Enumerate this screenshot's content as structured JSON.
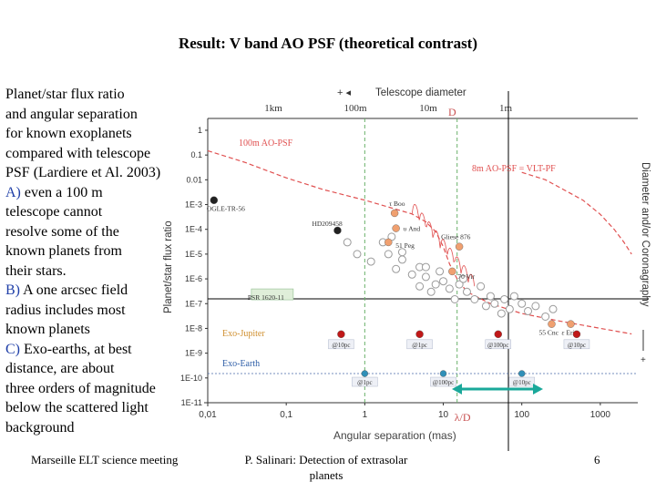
{
  "slide": {
    "title": "Result: V band AO PSF (theoretical contrast)",
    "lines": [
      {
        "text": "Planet/star flux ratio",
        "blue": false
      },
      {
        "text": "and angular separation",
        "blue": false
      },
      {
        "text": "for known exoplanets",
        "blue": false
      },
      {
        "text": "compared with telescope",
        "blue": false
      },
      {
        "text": "PSF (Lardiere et Al. 2003)",
        "blue": false
      },
      {
        "text": "A) even a 100 m",
        "blue": true
      },
      {
        "text": "telescope cannot",
        "blue": false
      },
      {
        "text": "resolve some of the",
        "blue": false
      },
      {
        "text": "known planets from",
        "blue": false
      },
      {
        "text": "their stars.",
        "blue": false
      },
      {
        "text": "B) A one arcsec field",
        "blue": true
      },
      {
        "text": "radius includes most",
        "blue": false
      },
      {
        "text": "known planets",
        "blue": false
      },
      {
        "text": "C) Exo-earths, at best",
        "blue": true
      },
      {
        "text": "distance, are about",
        "blue": false
      },
      {
        "text": "three orders of magnitude",
        "blue": false
      },
      {
        "text": "below the scattered light",
        "blue": false
      },
      {
        "text": "background",
        "blue": false
      }
    ],
    "footer": {
      "left": "Marseille ELT science meeting",
      "center_line1": "P. Salinari: Detection of extrasolar",
      "center_line2": "planets",
      "page": "6"
    }
  },
  "chart_data": {
    "type": "scatter",
    "xlabel": "Angular separation (mas)",
    "ylabel": "Planet/star flux ratio",
    "right_label": "Diameter and/or Coronagraphy",
    "top_axis_title": "Telescope diameter",
    "top_axis_arrows": "+ ◂",
    "right_axis_arrow": "+",
    "x_scale": "log",
    "y_scale": "log",
    "xlim": [
      0.01,
      3000
    ],
    "ylim": [
      1e-11,
      3
    ],
    "x_ticks": [
      "0,01",
      "0,1",
      "1",
      "10",
      "100",
      "1000"
    ],
    "y_ticks": [
      "1",
      "0.1",
      "0.01",
      "1E-3",
      "1E-4",
      "1E-5",
      "1E-6",
      "1E-7",
      "1E-8",
      "1E-9",
      "1E-10",
      "1E-11"
    ],
    "top_ticks": [
      "1km",
      "100m",
      "10m",
      "1m"
    ],
    "annotations": {
      "D": "D",
      "lambda_over_D": "λ/D",
      "psf_100m": "100m AO-PSF",
      "psf_8m": "8m AO-PSF = VLT-PF",
      "exo_jupiter": "Exo-Jupiter",
      "exo_earth": "Exo-Earth",
      "planet_labels": [
        "OGLE-TR-56",
        "HD209458",
        "τ Boo",
        "υ And",
        "51 Peg",
        "Gliese 876",
        "70 Vir",
        "PSR 1620-11",
        "55 Cnc",
        "ε Eri"
      ],
      "jupiter_distances": [
        "@10pc",
        "@1pc",
        "@100pc",
        "@10pc"
      ],
      "earth_distances": [
        "@1pc",
        "@100pc",
        "@10pc"
      ]
    },
    "series": [
      {
        "name": "100m AO-PSF",
        "color": "#e05050",
        "points": [
          [
            0.01,
            0.15
          ],
          [
            0.03,
            0.05
          ],
          [
            0.1,
            0.012
          ],
          [
            0.3,
            0.004
          ],
          [
            1,
            0.0015
          ],
          [
            2,
            0.0008
          ],
          [
            4,
            0.00042
          ],
          [
            6,
            0.0002
          ],
          [
            8,
            8e-05
          ],
          [
            10,
            2e-05
          ],
          [
            12,
            4e-06
          ],
          [
            15,
            1e-06
          ],
          [
            20,
            3e-07
          ],
          [
            40,
            1e-07
          ],
          [
            100,
            4e-08
          ],
          [
            300,
            2e-08
          ],
          [
            1000,
            1e-08
          ],
          [
            2500,
            6e-09
          ]
        ]
      },
      {
        "name": "8m AO-PSF = VLT-PF",
        "color": "#e05050",
        "points": [
          [
            100,
            0.02
          ],
          [
            200,
            0.01
          ],
          [
            300,
            0.005
          ],
          [
            600,
            0.0015
          ],
          [
            1000,
            0.0004
          ],
          [
            1500,
            0.0001
          ],
          [
            2000,
            3e-05
          ],
          [
            2500,
            1e-05
          ]
        ]
      }
    ],
    "known_planets_grey": [
      [
        0.6,
        3e-05
      ],
      [
        0.8,
        1e-05
      ],
      [
        1.2,
        5e-06
      ],
      [
        1.7,
        3e-05
      ],
      [
        2,
        1e-05
      ],
      [
        2.5,
        2.5e-06
      ],
      [
        3,
        6e-06
      ],
      [
        4,
        1.5e-06
      ],
      [
        5,
        3e-06
      ],
      [
        5,
        5e-07
      ],
      [
        6,
        1.2e-06
      ],
      [
        7,
        3e-07
      ],
      [
        8,
        6e-07
      ],
      [
        9,
        2e-06
      ],
      [
        10,
        8e-07
      ],
      [
        12,
        4e-07
      ],
      [
        14,
        1.5e-07
      ],
      [
        16,
        6e-07
      ],
      [
        18,
        1e-06
      ],
      [
        20,
        3e-07
      ],
      [
        25,
        1.5e-07
      ],
      [
        30,
        5e-07
      ],
      [
        35,
        8e-08
      ],
      [
        40,
        2e-07
      ],
      [
        45,
        1e-07
      ],
      [
        55,
        4e-08
      ],
      [
        60,
        1.5e-07
      ],
      [
        70,
        6e-08
      ],
      [
        80,
        2e-07
      ],
      [
        100,
        1e-07
      ],
      [
        120,
        5e-08
      ],
      [
        150,
        8e-08
      ],
      [
        200,
        3e-08
      ],
      [
        250,
        6e-08
      ],
      [
        3,
        1.2e-05
      ],
      [
        2.2,
        5e-05
      ],
      [
        6,
        3e-06
      ]
    ],
    "labeled_planets": [
      {
        "name": "OGLE-TR-56",
        "x": 0.012,
        "y": 0.0015,
        "color": "#222222"
      },
      {
        "name": "HD209458",
        "x": 0.45,
        "y": 9e-05,
        "color": "#222222"
      },
      {
        "name": "τ Boo",
        "x": 2.4,
        "y": 0.00045,
        "color": "#f0a070"
      },
      {
        "name": "υ And",
        "x": 2.5,
        "y": 0.00011,
        "color": "#f0a070"
      },
      {
        "name": "51 Peg",
        "x": 2.0,
        "y": 3e-05,
        "color": "#f0a070"
      },
      {
        "name": "Gliese 876",
        "x": 16,
        "y": 2e-05,
        "color": "#f0a070"
      },
      {
        "name": "70 Vir",
        "x": 13,
        "y": 2e-06,
        "color": "#f0a070"
      },
      {
        "name": "PSR 1620-11",
        "x": 0.04,
        "y": 2e-07,
        "color": "#3a9a3a"
      },
      {
        "name": "55 Cnc",
        "x": 240,
        "y": 1.5e-08,
        "color": "#f0a070"
      },
      {
        "name": "ε Eri",
        "x": 420,
        "y": 1.5e-08,
        "color": "#f0a070"
      }
    ],
    "exo_jupiter_points": [
      {
        "x": 0.5,
        "y": 2.5e-09,
        "label": "@10pc"
      },
      {
        "x": 5,
        "y": 2.5e-09,
        "label": "@1pc"
      },
      {
        "x": 50,
        "y": 2.5e-09,
        "label": "@100pc"
      },
      {
        "x": 500,
        "y": 2.5e-09,
        "label": "@10pc"
      }
    ],
    "exo_earth_points": [
      {
        "x": 1,
        "y": 1.5e-10,
        "label": "@1pc"
      },
      {
        "x": 10,
        "y": 1.5e-10,
        "label": "@100pc"
      },
      {
        "x": 100,
        "y": 1.5e-10,
        "label": "@10pc"
      }
    ],
    "colors": {
      "psf": "#e05050",
      "exo_jupiter": "#c01818",
      "exo_earth": "#2f8fb8",
      "arrow": "#1aa89a",
      "guide_green": "#6ab06a"
    }
  }
}
